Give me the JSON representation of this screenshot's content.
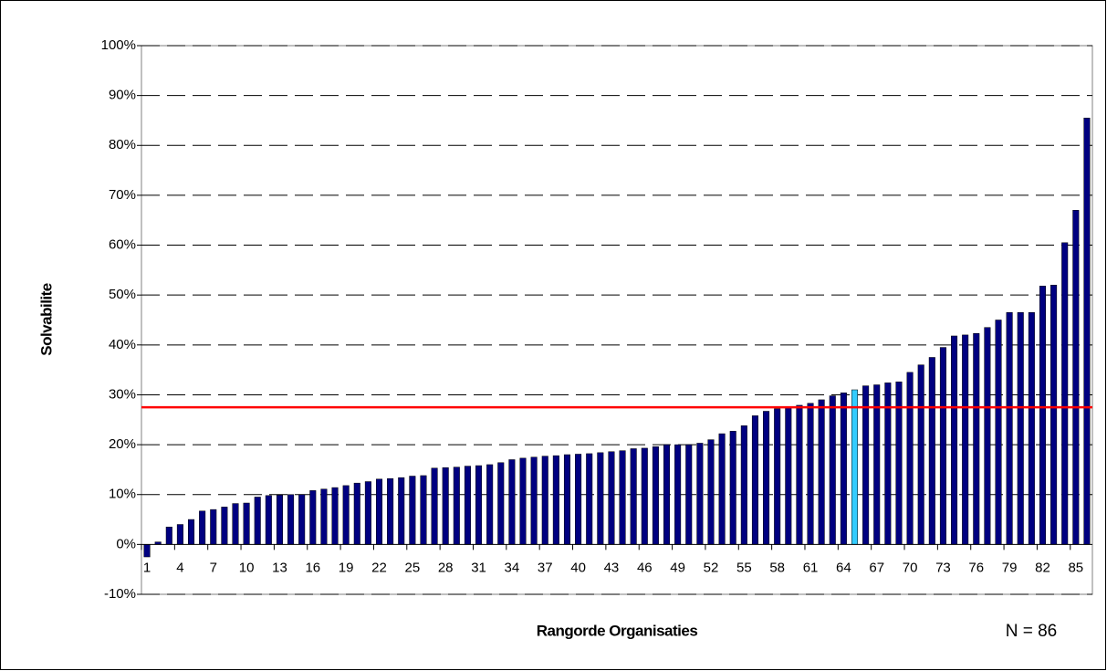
{
  "chart_data": {
    "type": "bar",
    "y_label": "Solvabilite",
    "x_label": "Rangorde Organisaties",
    "annotation": "N = 86",
    "categories": [
      "1",
      null,
      null,
      "4",
      null,
      null,
      "7",
      null,
      null,
      "10",
      null,
      null,
      "13",
      null,
      null,
      "16",
      null,
      null,
      "19",
      null,
      null,
      "22",
      null,
      null,
      "25",
      null,
      null,
      "28",
      null,
      null,
      "31",
      null,
      null,
      "34",
      null,
      null,
      "37",
      null,
      null,
      "40",
      null,
      null,
      "43",
      null,
      null,
      "46",
      null,
      null,
      "49",
      null,
      null,
      "52",
      null,
      null,
      "55",
      null,
      null,
      "58",
      null,
      null,
      "61",
      null,
      null,
      "64",
      null,
      null,
      "67",
      null,
      null,
      "70",
      null,
      null,
      "73",
      null,
      null,
      "76",
      null,
      null,
      "79",
      null,
      null,
      "82",
      null,
      null,
      "85",
      null
    ],
    "values": [
      -2.5,
      0.5,
      3.5,
      4,
      5,
      6.7,
      7,
      7.5,
      8.2,
      8.3,
      9.5,
      9.8,
      9.9,
      10,
      10,
      10.8,
      11.1,
      11.4,
      11.8,
      12.3,
      12.6,
      13.1,
      13.2,
      13.4,
      13.7,
      13.8,
      15.3,
      15.4,
      15.5,
      15.7,
      15.8,
      16,
      16.4,
      17,
      17.3,
      17.5,
      17.7,
      17.8,
      18,
      18.1,
      18.2,
      18.4,
      18.6,
      18.8,
      19.2,
      19.3,
      19.6,
      20,
      20,
      20,
      20.3,
      21,
      22.2,
      22.7,
      23.8,
      25.8,
      26.7,
      27.2,
      27.5,
      27.9,
      28.3,
      29,
      29.8,
      30.4,
      31,
      31.8,
      32,
      32.4,
      32.6,
      34.5,
      36,
      37.5,
      39.5,
      41.8,
      42,
      42.3,
      43.5,
      45,
      46.5,
      46.5,
      46.5,
      51.8,
      52,
      60.5,
      67,
      85.5
    ],
    "colors": [
      "#000080",
      "#000080",
      "#000080",
      "#000080",
      "#000080",
      "#000080",
      "#000080",
      "#000080",
      "#000080",
      "#000080",
      "#000080",
      "#000080",
      "#000080",
      "#000080",
      "#000080",
      "#000080",
      "#000080",
      "#000080",
      "#000080",
      "#000080",
      "#000080",
      "#000080",
      "#000080",
      "#000080",
      "#000080",
      "#000080",
      "#000080",
      "#000080",
      "#000080",
      "#000080",
      "#000080",
      "#000080",
      "#000080",
      "#000080",
      "#000080",
      "#000080",
      "#000080",
      "#000080",
      "#000080",
      "#000080",
      "#000080",
      "#000080",
      "#000080",
      "#000080",
      "#000080",
      "#000080",
      "#000080",
      "#000080",
      "#000080",
      "#000080",
      "#000080",
      "#000080",
      "#000080",
      "#000080",
      "#000080",
      "#000080",
      "#000080",
      "#000080",
      "#000080",
      "#000080",
      "#000080",
      "#000080",
      "#000080",
      "#000080",
      "#33ccff",
      "#000080",
      "#000080",
      "#000080",
      "#000080",
      "#000080",
      "#000080",
      "#000080",
      "#000080",
      "#000080",
      "#000080",
      "#000080",
      "#000080",
      "#000080",
      "#000080",
      "#000080",
      "#000080",
      "#000080",
      "#000080",
      "#000080",
      "#000080",
      "#000080"
    ],
    "reference_line": {
      "value": 27.5,
      "color": "#ff0000"
    },
    "ylim": [
      -10,
      100
    ],
    "yticks": [
      {
        "value": -10,
        "label": "-10%"
      },
      {
        "value": 0,
        "label": "0%"
      },
      {
        "value": 10,
        "label": "10%"
      },
      {
        "value": 20,
        "label": "20%"
      },
      {
        "value": 30,
        "label": "30%"
      },
      {
        "value": 40,
        "label": "40%"
      },
      {
        "value": 50,
        "label": "50%"
      },
      {
        "value": 60,
        "label": "60%"
      },
      {
        "value": 70,
        "label": "70%"
      },
      {
        "value": 80,
        "label": "80%"
      },
      {
        "value": 90,
        "label": "90%"
      },
      {
        "value": 100,
        "label": "100%"
      }
    ],
    "grid": true
  }
}
